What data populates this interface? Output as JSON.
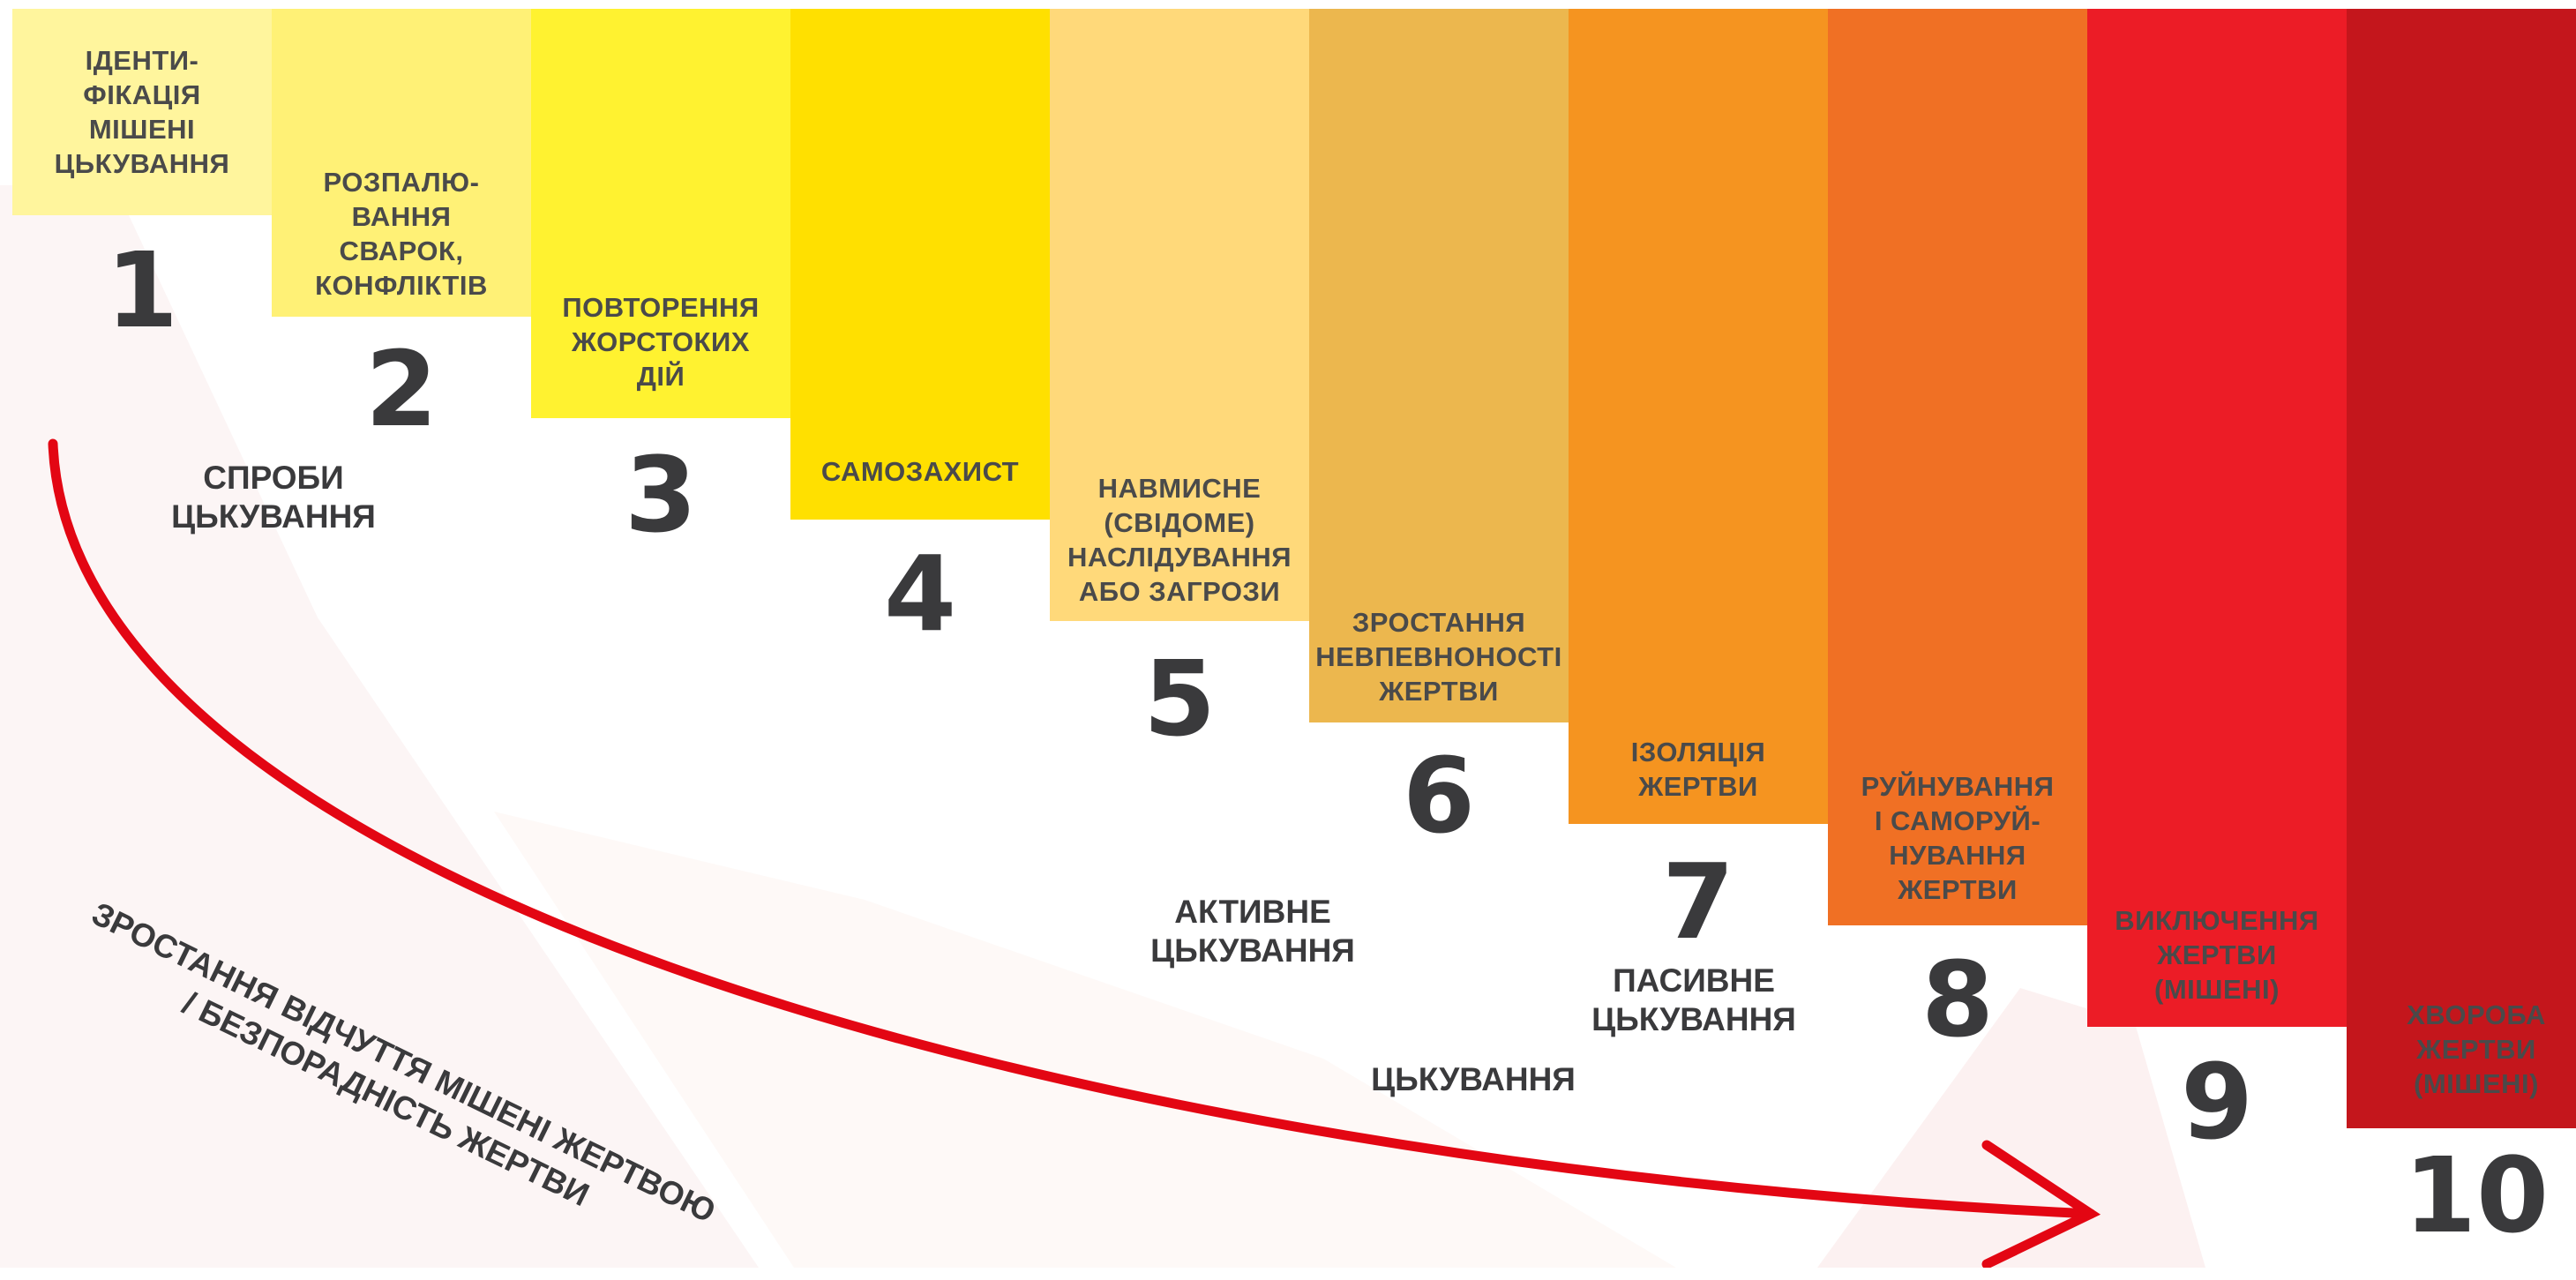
{
  "stages": [
    {
      "number": "1",
      "label": "ІДЕНТИ-\nФІКАЦІЯ\nМІШЕНІ\nЦЬКУВАННЯ",
      "color": "#FFF59D"
    },
    {
      "number": "2",
      "label": "РОЗПАЛЮ-\nВАННЯ\nСВАРОК,\nКОНФЛІКТІВ",
      "color": "#FFF176"
    },
    {
      "number": "3",
      "label": "ПОВТОРЕННЯ\nЖОРСТОКИХ\nДІЙ",
      "color": "#FFF230"
    },
    {
      "number": "4",
      "label": "САМОЗАХИСТ",
      "color": "#FFE000"
    },
    {
      "number": "5",
      "label": "НАВМИСНЕ\n(СВІДОМЕ)\nНАСЛІДУВАННЯ\nАБО ЗАГРОЗИ",
      "color": "#FFD97A"
    },
    {
      "number": "6",
      "label": "ЗРОСТАННЯ\nНЕВПЕВНОНОСТІ\nЖЕРТВИ",
      "color": "#ECB74E"
    },
    {
      "number": "7",
      "label": "ІЗОЛЯЦІЯ\nЖЕРТВИ",
      "color": "#F59420"
    },
    {
      "number": "8",
      "label": "РУЙНУВАННЯ\nІ САМОРУЙ-\nНУВАННЯ\nЖЕРТВИ",
      "color": "#F07024"
    },
    {
      "number": "9",
      "label": "ВИКЛЮЧЕННЯ\nЖЕРТВИ\n(МІШЕНІ)",
      "color": "#EC1C26"
    },
    {
      "number": "10",
      "label": "ХВОРОБА\nЖЕРТВИ\n(МІШЕНІ)",
      "color": "#C4161C"
    }
  ],
  "groups": {
    "attempts": "СПРОБИ\nЦЬКУВАННЯ",
    "active": "АКТИВНЕ\nЦЬКУВАННЯ",
    "passive": "ПАСИВНЕ\nЦЬКУВАННЯ",
    "bullying": "ЦЬКУВАННЯ"
  },
  "arrow_label": "ЗРОСТАННЯ ВІДЧУТТЯ МІШЕНІ ЖЕРТВОЮ\n/ БЕЗПОРАДНІСТЬ ЖЕРТВИ",
  "arrow_color": "#E30613"
}
